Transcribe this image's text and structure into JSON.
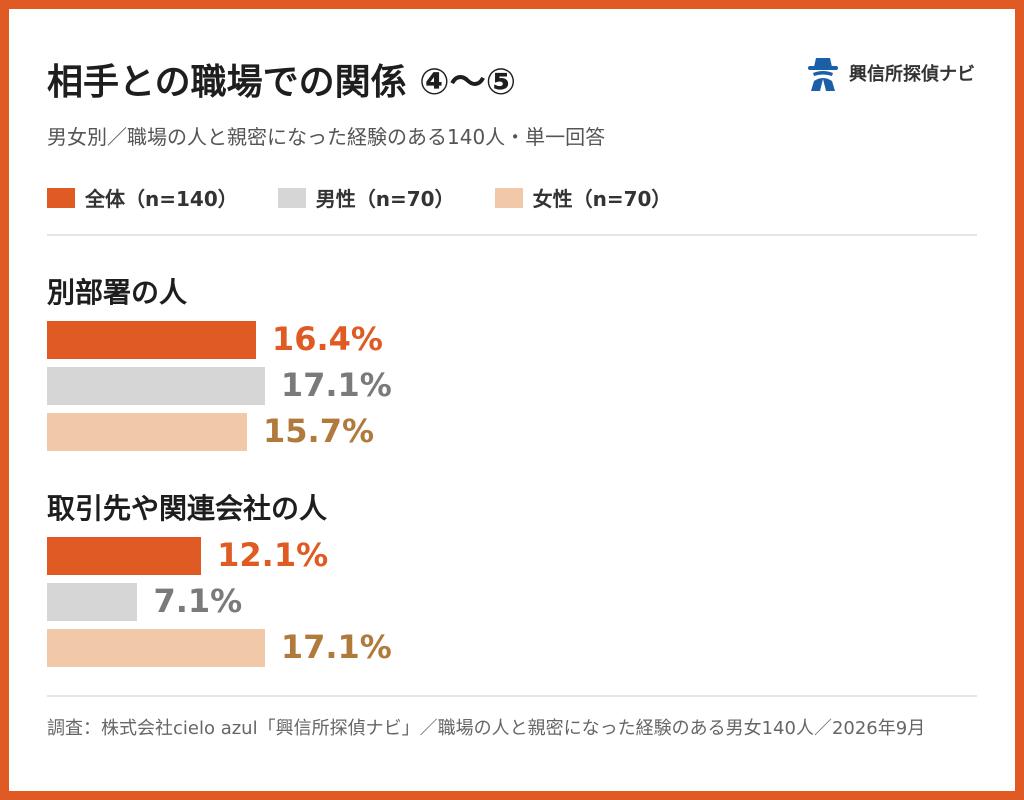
{
  "header": {
    "title": "相手との職場での関係 ④〜⑤",
    "subtitle": "男女別／職場の人と親密になった経験のある140人・単一回答"
  },
  "brand": {
    "name": "興信所探偵ナビ",
    "icon": "detective-icon",
    "color": "#1a5fa8"
  },
  "colors": {
    "total": "#e05a24",
    "male": "#d6d6d6",
    "female": "#f2c9a8",
    "total_label": "#e05a24",
    "male_label": "#7a7a7a",
    "female_label": "#b07a3c"
  },
  "legend": [
    {
      "label": "全体（n=140）",
      "color": "#e05a24"
    },
    {
      "label": "男性（n=70）",
      "color": "#d6d6d6"
    },
    {
      "label": "女性（n=70）",
      "color": "#f2c9a8"
    }
  ],
  "chart_data": {
    "type": "bar",
    "orientation": "horizontal",
    "xlim": [
      0,
      100
    ],
    "categories": [
      "別部署の人",
      "取引先や関連会社の人"
    ],
    "series": [
      {
        "name": "全体（n=140）",
        "values": [
          16.4,
          12.1
        ],
        "labels": [
          "16.4%",
          "12.1%"
        ]
      },
      {
        "name": "男性（n=70）",
        "values": [
          17.1,
          7.1
        ],
        "labels": [
          "17.1%",
          "7.1%"
        ]
      },
      {
        "name": "女性（n=70）",
        "values": [
          15.7,
          17.1
        ],
        "labels": [
          "15.7%",
          "17.1%"
        ]
      }
    ]
  },
  "footer": {
    "text": "調査：株式会社cielo azul「興信所探偵ナビ」／職場の人と親密になった経験のある男女140人／2026年9月"
  }
}
